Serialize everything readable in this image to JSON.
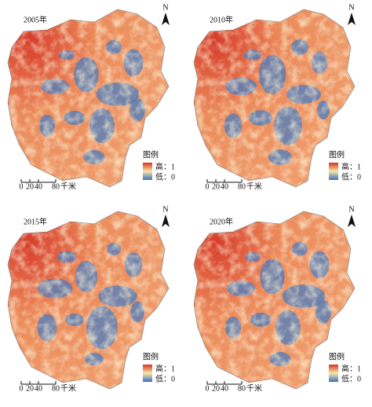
{
  "panels": [
    {
      "year": "2005年"
    },
    {
      "year": "2010年"
    },
    {
      "year": "2015年"
    },
    {
      "year": "2020年"
    }
  ],
  "north": "N",
  "legend": {
    "title": "图例",
    "high": "高：1",
    "low": "低：0"
  },
  "scale_bar": {
    "ticks": [
      0,
      20,
      40,
      80
    ],
    "unit": "千米"
  }
}
